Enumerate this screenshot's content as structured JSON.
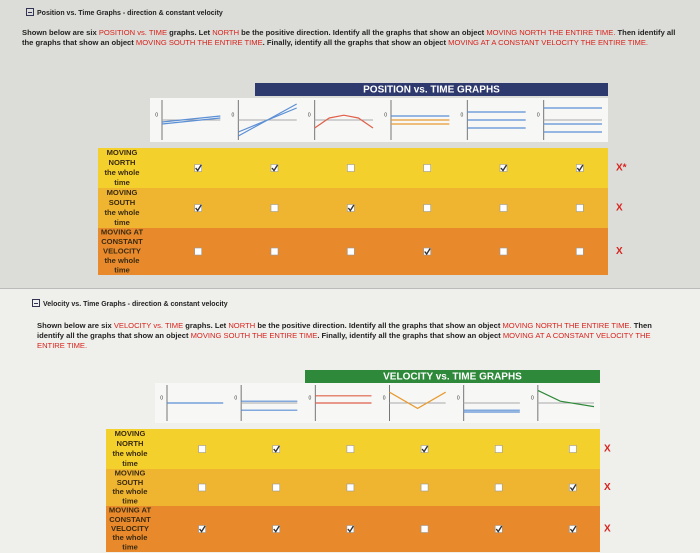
{
  "sections": [
    {
      "header": "Position vs. Time Graphs - direction & constant velocity",
      "instructions": [
        {
          "text": "Shown below are six ",
          "highlight": false
        },
        {
          "text": "POSITION vs. TIME",
          "highlight": true
        },
        {
          "text": " graphs. Let ",
          "highlight": false
        },
        {
          "text": "NORTH",
          "highlight": true
        },
        {
          "text": " be the positive direction. Identify all the graphs that show an object ",
          "highlight": false
        },
        {
          "text": "MOVING NORTH THE ENTIRE TIME.",
          "highlight": true
        },
        {
          "text": " Then identify all the graphs that show an object ",
          "highlight": false
        },
        {
          "text": "MOVING SOUTH THE ENTIRE TIME",
          "highlight": true
        },
        {
          "text": ". Finally, identify all the graphs that show an object ",
          "highlight": false
        },
        {
          "text": "MOVING AT A CONSTANT VELOCITY THE ENTIRE TIME.",
          "highlight": true
        }
      ],
      "table_title": "POSITION vs. TIME GRAPHS",
      "origin_label": "0",
      "rows": [
        {
          "label": [
            "MOVING",
            "NORTH",
            "the whole",
            "time"
          ],
          "checked": [
            true,
            true,
            false,
            false,
            true,
            true
          ],
          "mark": "X*"
        },
        {
          "label": [
            "MOVING",
            "SOUTH",
            "the whole",
            "time"
          ],
          "checked": [
            true,
            false,
            true,
            false,
            false,
            false
          ],
          "mark": "X"
        },
        {
          "label": [
            "MOVING AT",
            "CONSTANT",
            "VELOCITY",
            "the whole",
            "time"
          ],
          "checked": [
            false,
            false,
            false,
            true,
            false,
            false
          ],
          "mark": "X"
        }
      ]
    },
    {
      "header": "Velocity vs. Time Graphs - direction & constant velocity",
      "instructions": [
        {
          "text": "Shown below are six ",
          "highlight": false
        },
        {
          "text": "VELOCITY vs. TIME",
          "highlight": true
        },
        {
          "text": " graphs. Let ",
          "highlight": false
        },
        {
          "text": "NORTH",
          "highlight": true
        },
        {
          "text": " be the positive direction. Identify all the graphs that show an object ",
          "highlight": false
        },
        {
          "text": "MOVING NORTH THE ENTIRE TIME.",
          "highlight": true
        },
        {
          "text": " Then identify all the graphs that show an object ",
          "highlight": false
        },
        {
          "text": "MOVING SOUTH THE ENTIRE TIME",
          "highlight": true
        },
        {
          "text": ". Finally, identify all the graphs that show an object ",
          "highlight": false
        },
        {
          "text": "MOVING AT A CONSTANT VELOCITY THE ENTIRE TIME.",
          "highlight": true
        }
      ],
      "table_title": "VELOCITY vs. TIME GRAPHS",
      "origin_label": "0",
      "rows": [
        {
          "label": [
            "MOVING",
            "NORTH",
            "the whole",
            "time"
          ],
          "checked": [
            false,
            true,
            false,
            true,
            false,
            false
          ],
          "mark": "X"
        },
        {
          "label": [
            "MOVING",
            "SOUTH",
            "the whole",
            "time"
          ],
          "checked": [
            false,
            false,
            false,
            false,
            false,
            true
          ],
          "mark": "X"
        },
        {
          "label": [
            "MOVING AT",
            "CONSTANT",
            "VELOCITY",
            "the whole",
            "time"
          ],
          "checked": [
            true,
            true,
            true,
            false,
            true,
            true
          ],
          "mark": "X"
        }
      ]
    }
  ]
}
